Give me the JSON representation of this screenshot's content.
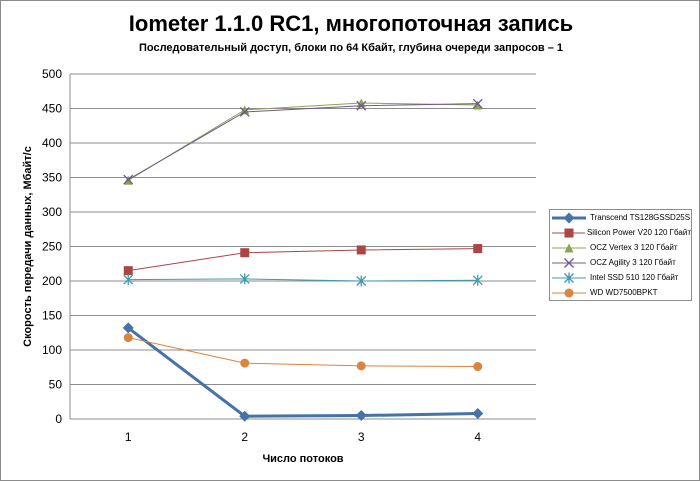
{
  "chart_data": {
    "type": "line",
    "title": "Iometer 1.1.0 RC1, многопоточная запись",
    "subtitle": "Последовательный  доступ, блоки  по 64 Кбайт,  глубина очереди запросов – 1",
    "xlabel": "Число  потоков",
    "ylabel": "Скорость  передачи данных, Мбайт/с",
    "categories": [
      "1",
      "2",
      "3",
      "4"
    ],
    "ylim": [
      0,
      500
    ],
    "yticks": [
      "0",
      "50",
      "100",
      "150",
      "200",
      "250",
      "300",
      "350",
      "400",
      "450",
      "500"
    ],
    "grid": true,
    "legend_position": "right",
    "series": [
      {
        "name": "Transcend TS128GSSD25S",
        "values": [
          132,
          4,
          5,
          8
        ],
        "color": "#4572a7",
        "marker": "diamond",
        "width": 3
      },
      {
        "name": "Silicon Power V20 120 Гбайт",
        "values": [
          215,
          241,
          245,
          247
        ],
        "color": "#aa4643",
        "marker": "square",
        "width": 1
      },
      {
        "name": "OCZ Vertex 3 120 Гбайт",
        "values": [
          346,
          448,
          458,
          455
        ],
        "color": "#89a54e",
        "marker": "triangle",
        "width": 1
      },
      {
        "name": "OCZ Agility 3 120 Гбайт",
        "values": [
          347,
          445,
          454,
          457
        ],
        "color": "#71588f",
        "marker": "x",
        "width": 1
      },
      {
        "name": "Intel SSD 510 120 Гбайт",
        "values": [
          202,
          203,
          200,
          201
        ],
        "color": "#4198af",
        "marker": "star",
        "width": 1
      },
      {
        "name": "WD WD7500BPKT",
        "values": [
          118,
          81,
          77,
          76
        ],
        "color": "#db843d",
        "marker": "circle",
        "width": 1
      }
    ]
  }
}
